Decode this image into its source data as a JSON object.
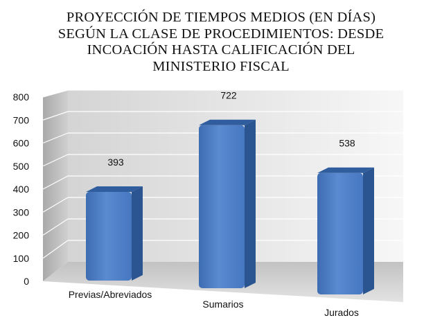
{
  "chart_data": {
    "type": "bar",
    "title_lines": [
      "PROYECCIÓN DE TIEMPOS MEDIOS (EN DÍAS)",
      "SEGÚN LA CLASE DE PROCEDIMIENTOS: DESDE",
      "INCOACIÓN HASTA CALIFICACIÓN DEL",
      "MINISTERIO FISCAL"
    ],
    "categories": [
      "Previas/Abreviados",
      "Sumarios",
      "Jurados"
    ],
    "values": [
      393,
      722,
      538
    ],
    "data_labels": [
      "393",
      "722",
      "538"
    ],
    "ylim": [
      0,
      800
    ],
    "y_ticks": [
      "0",
      "100",
      "200",
      "300",
      "400",
      "500",
      "600",
      "700",
      "800"
    ],
    "grid": true,
    "three_d": true,
    "legend": "none",
    "colors": {
      "bar_front": "#4a7cc4",
      "bar_top": "#2f5d9e",
      "bar_side": "#2b5590",
      "wall": "#e6e6e6",
      "floor": "#c9c9c9"
    }
  }
}
